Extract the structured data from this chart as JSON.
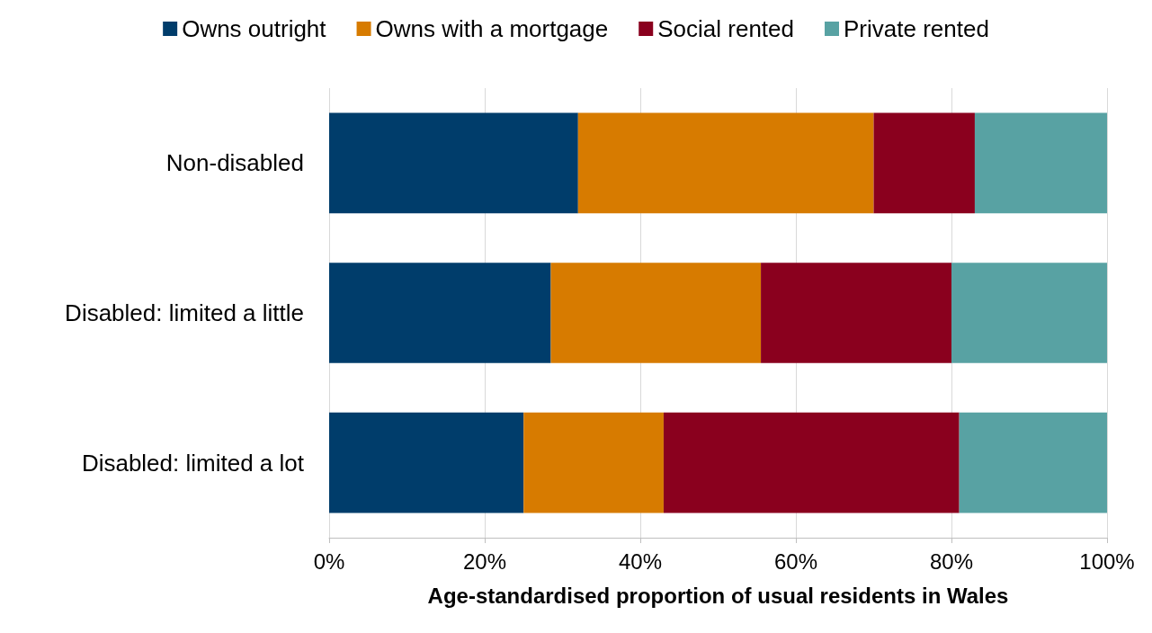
{
  "chart_data": {
    "type": "bar",
    "orientation": "horizontal",
    "stacked": true,
    "xlabel": "Age-standardised proportion of usual residents in Wales",
    "categories": [
      "Non-disabled",
      "Disabled: limited a little",
      "Disabled: limited a lot"
    ],
    "series": [
      {
        "name": "Owns outright",
        "color": "#003d6b",
        "values": [
          32,
          28.5,
          25
        ]
      },
      {
        "name": "Owns with a mortgage",
        "color": "#d77b00",
        "values": [
          38,
          27,
          18
        ]
      },
      {
        "name": "Social rented",
        "color": "#8a001e",
        "values": [
          13,
          24.5,
          38
        ]
      },
      {
        "name": "Private rented",
        "color": "#58a2a3",
        "values": [
          17,
          20,
          19
        ]
      }
    ],
    "xlim": [
      0,
      100
    ],
    "xticks": [
      {
        "value": 0,
        "label": "0%"
      },
      {
        "value": 20,
        "label": "20%"
      },
      {
        "value": 40,
        "label": "40%"
      },
      {
        "value": 60,
        "label": "60%"
      },
      {
        "value": 80,
        "label": "80%"
      },
      {
        "value": 100,
        "label": "100%"
      }
    ],
    "grid": "x",
    "legend": "top"
  }
}
